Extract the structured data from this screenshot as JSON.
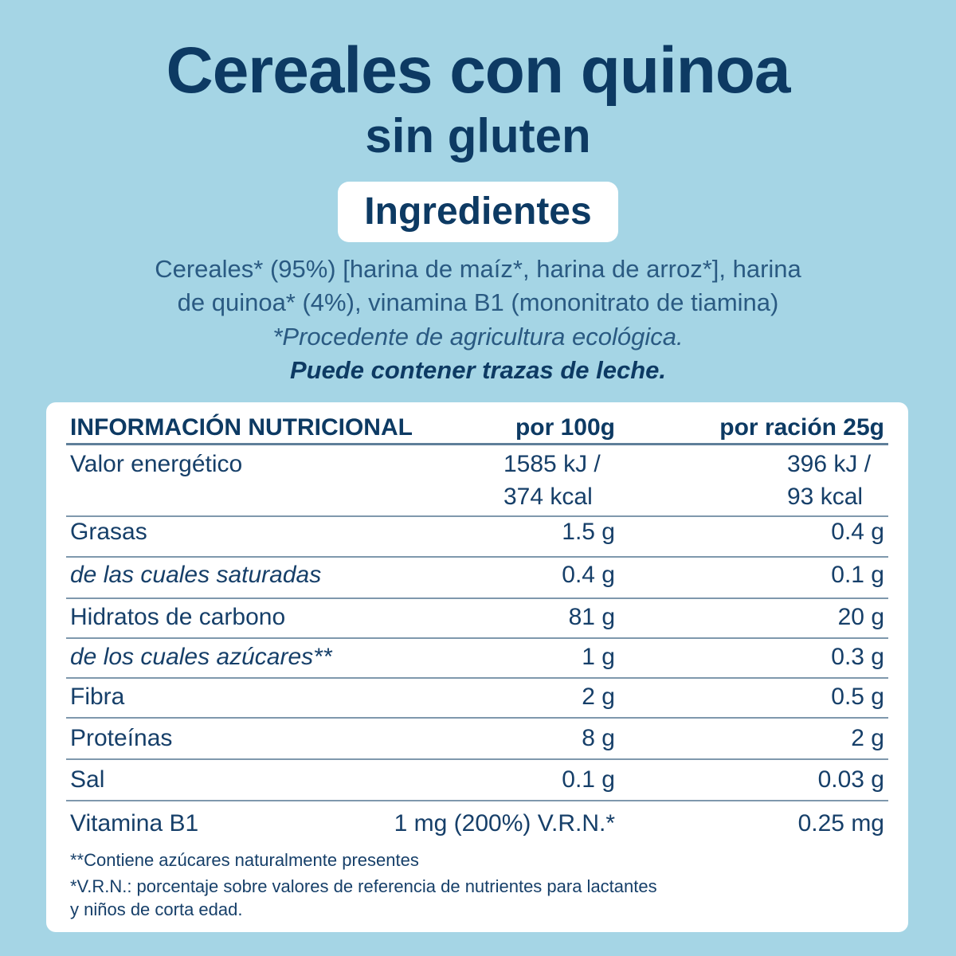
{
  "header": {
    "title": "Cereales con quinoa",
    "subtitle": "sin gluten"
  },
  "ingredients": {
    "heading": "Ingredientes",
    "lines": [
      "Cereales* (95%) [harina de maíz*, harina de arroz*], harina",
      "de quinoa* (4%), vinamina B1 (mononitrato de tiamina)"
    ],
    "note": "*Procedente de agricultura ecológica.",
    "allergens": "Puede contener trazas de leche."
  },
  "table": {
    "columns": [
      "INFORMACIÓN NUTRICIONAL",
      "por 100g",
      "por ración 25g"
    ],
    "rows": [
      [
        "Valor energético",
        [
          "1585 kJ /",
          "374 kcal"
        ],
        [
          "396 kJ /",
          "93 kcal"
        ]
      ],
      [
        "Grasas",
        "1.5 g",
        "0.4 g"
      ],
      [
        "de las cuales saturadas",
        "0.4 g",
        "0.1 g"
      ],
      [
        "Hidratos de carbono",
        "81 g",
        "20 g"
      ],
      [
        "de los cuales azúcares**",
        "1 g",
        "0.3 g"
      ],
      [
        "Fibra",
        "2 g",
        "0.5 g"
      ],
      [
        "Proteínas",
        "8 g",
        "2 g"
      ],
      [
        "Sal",
        "0.1 g",
        "0.03 g"
      ],
      [
        "Vitamina B1",
        "1 mg (200%) V.R.N.*",
        "0.25 mg"
      ]
    ]
  },
  "footnotes": [
    "**Contiene azúcares naturalmente presentes",
    "*V.R.N.: porcentaje sobre valores de referencia de nutrientes para lactantes",
    "y niños de corta edad."
  ]
}
